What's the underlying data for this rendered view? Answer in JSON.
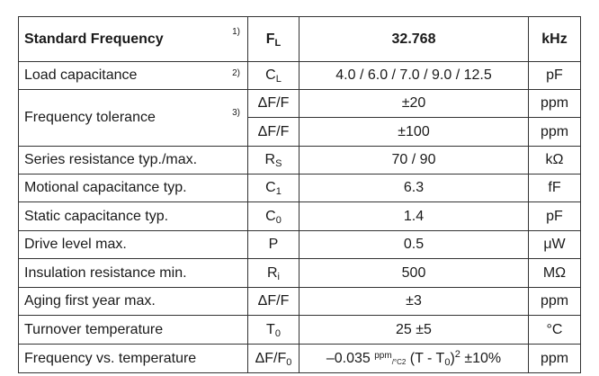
{
  "header": {
    "parameter": "Standard Frequency",
    "note": "1)",
    "symbol_main": "F",
    "symbol_sub": "L",
    "value": "32.768",
    "unit": "kHz"
  },
  "rows": [
    {
      "parameter": "Load capacitance",
      "note": "2)",
      "symbol_main": "C",
      "symbol_sub": "L",
      "value": "4.0 / 6.0 / 7.0 / 9.0 / 12.5",
      "unit": "pF"
    },
    {
      "parameter": "Frequency tolerance",
      "note": "3)",
      "symbol": "ΔF/F",
      "value": "±20",
      "unit": "ppm"
    },
    {
      "symbol": "ΔF/F",
      "value": "±100",
      "unit": "ppm"
    },
    {
      "parameter": "Series resistance typ./max.",
      "symbol_main": "R",
      "symbol_sub": "S",
      "value": "70 / 90",
      "unit": "kΩ"
    },
    {
      "parameter": "Motional capacitance typ.",
      "symbol_main": "C",
      "symbol_sub": "1",
      "value": "6.3",
      "unit": "fF"
    },
    {
      "parameter": "Static capacitance typ.",
      "symbol_main": "C",
      "symbol_sub": "0",
      "value": "1.4",
      "unit": "pF"
    },
    {
      "parameter": "Drive level max.",
      "symbol": "P",
      "value": "0.5",
      "unit": "μW"
    },
    {
      "parameter": "Insulation resistance min.",
      "symbol_main": "R",
      "symbol_sub": "i",
      "value": "500",
      "unit": "MΩ"
    },
    {
      "parameter": "Aging first year max.",
      "symbol": "ΔF/F",
      "value": "±3",
      "unit": "ppm"
    },
    {
      "parameter": "Turnover temperature",
      "symbol_main": "T",
      "symbol_sub": "0",
      "value": "25 ±5",
      "unit": "°C"
    },
    {
      "parameter": "Frequency vs. temperature",
      "symbol_main": "ΔF/F",
      "symbol_sub": "0",
      "value_coef": "–0.035",
      "value_unit_num": "ppm",
      "value_unit_den": "/°C",
      "value_unit_den_sup": "2",
      "value_open": "(T - T",
      "value_t_sub": "0",
      "value_close": ")",
      "value_sq": "2",
      "value_tol": "±10%",
      "unit": "ppm"
    }
  ]
}
